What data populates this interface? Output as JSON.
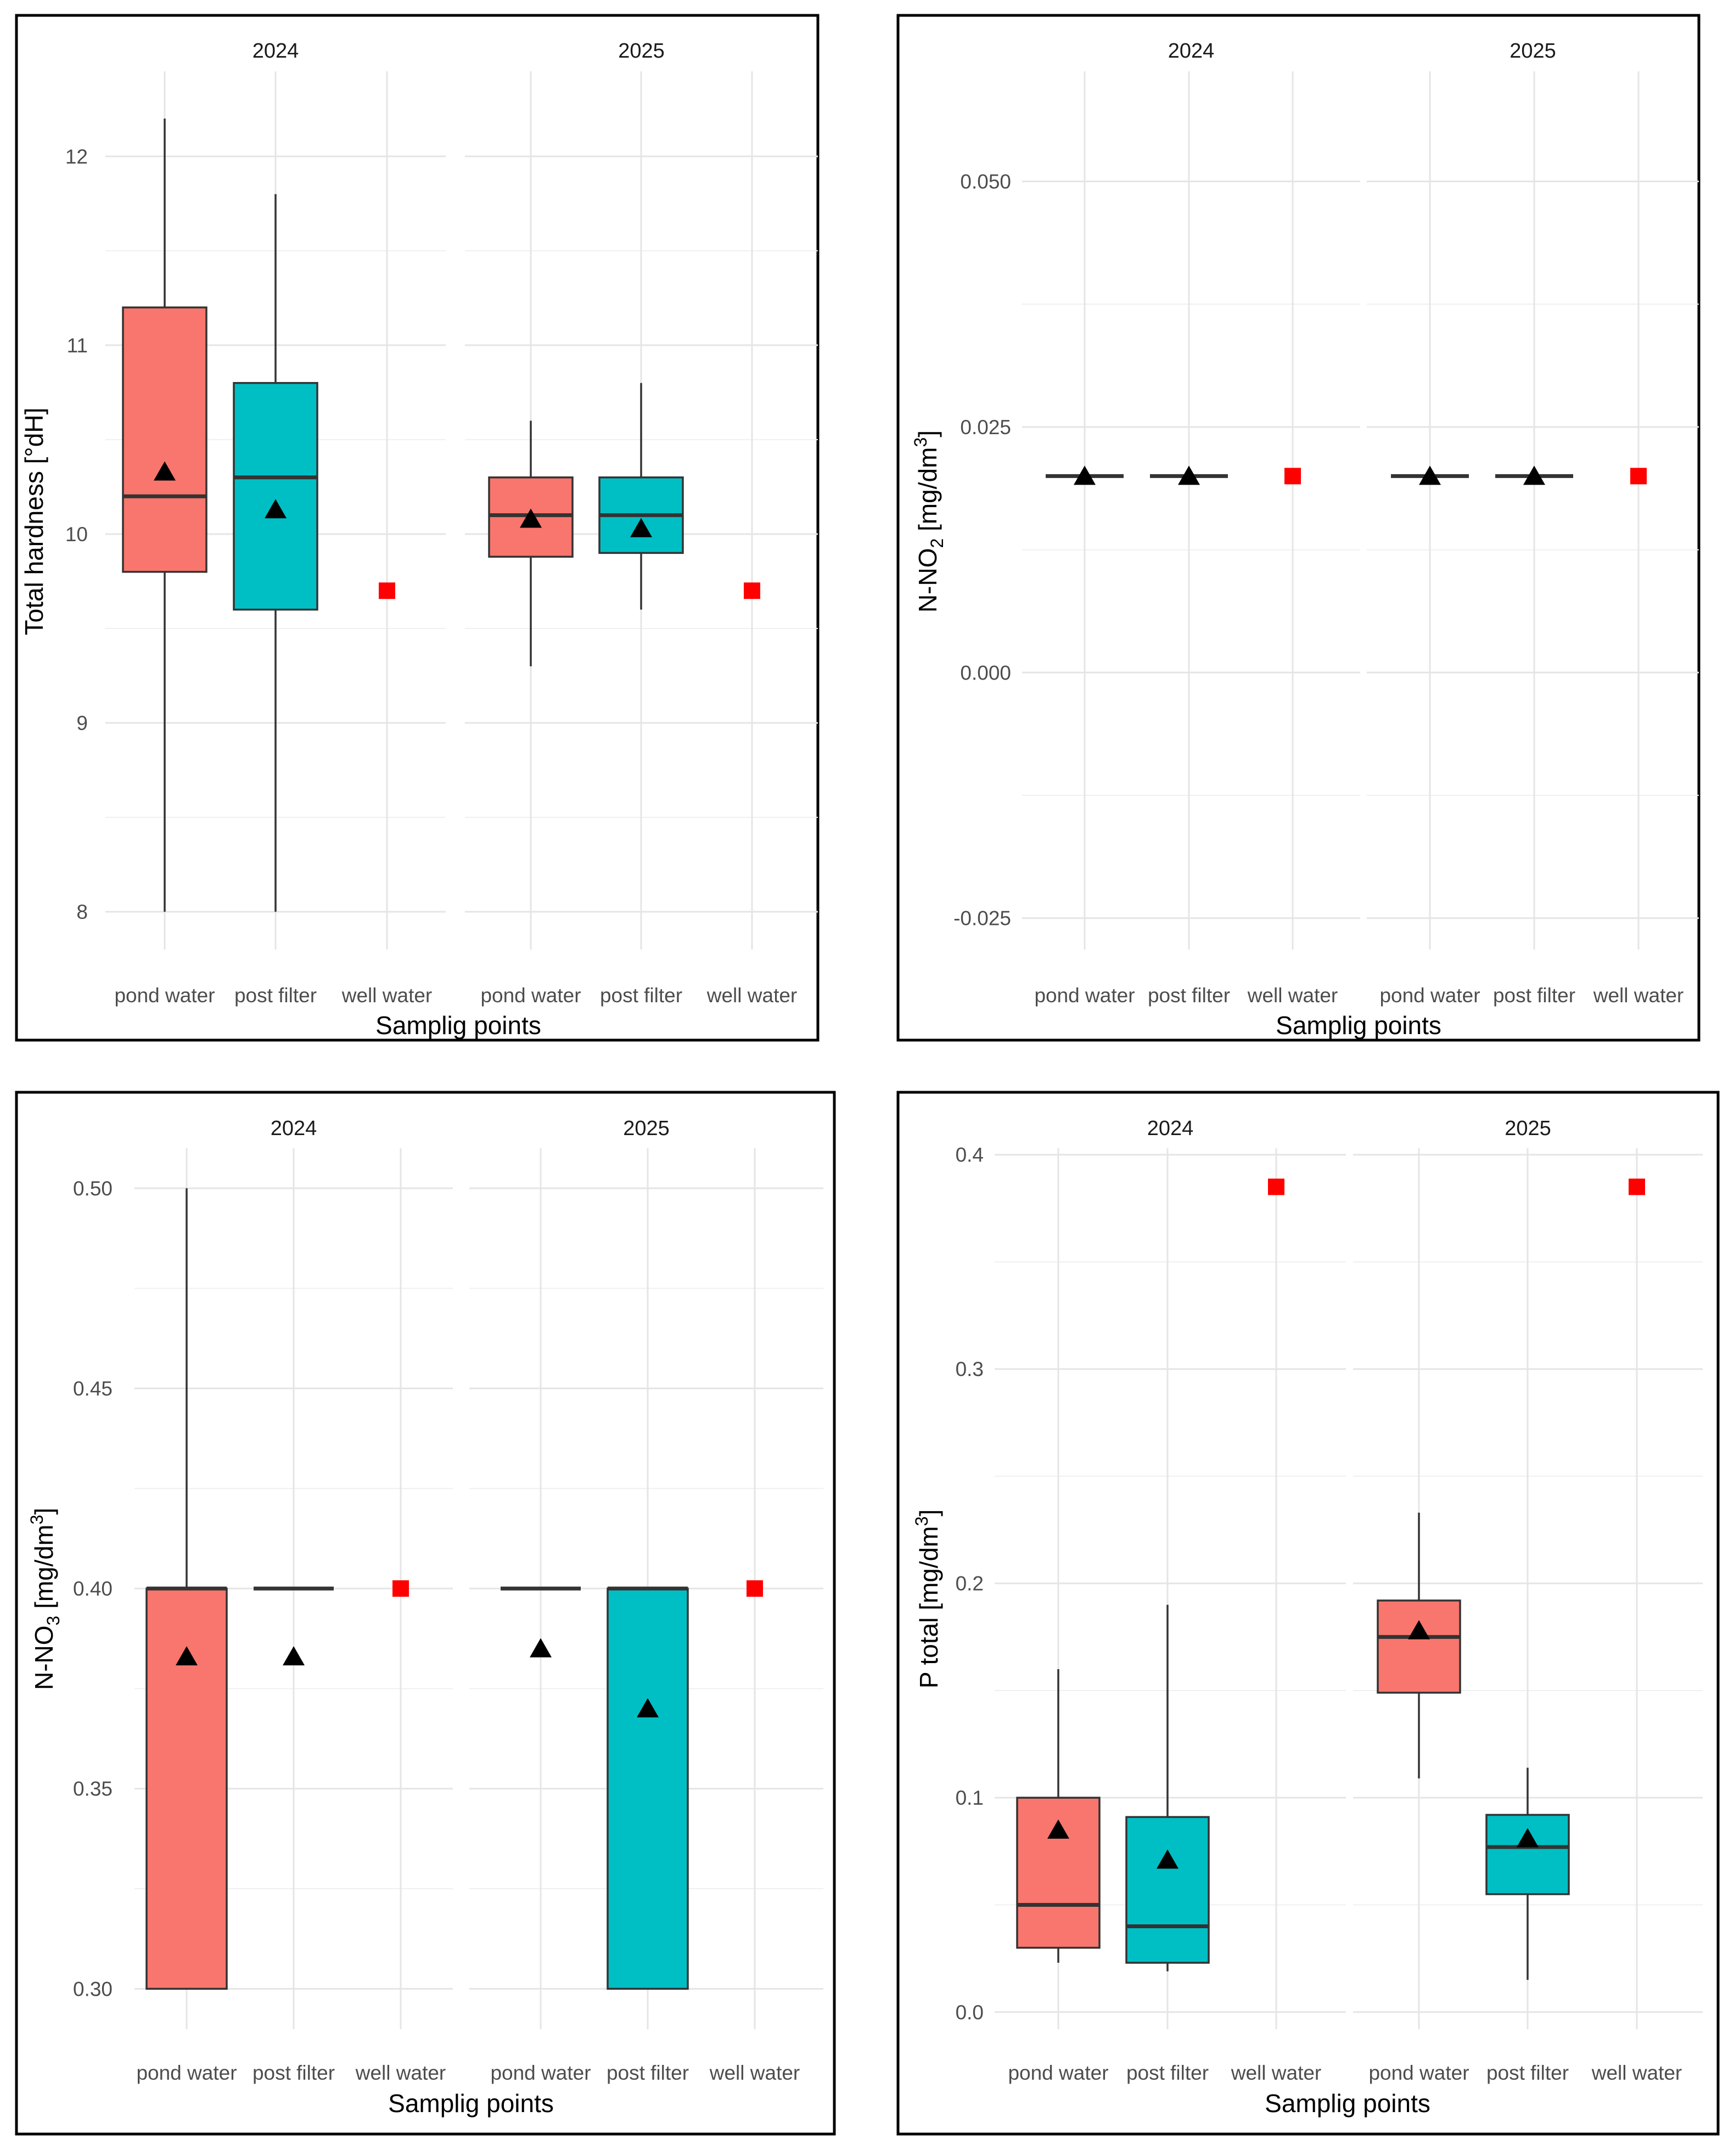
{
  "chart_data": [
    {
      "type": "box",
      "id": "hardness",
      "ylabel": "Total hardness [°dH]",
      "ylabel_sub": "",
      "ylabel_sup": "",
      "ylabel_post": "",
      "xlabel": "Samplig points",
      "ylim": [
        7.8,
        12.45
      ],
      "yticks": [
        8,
        9,
        10,
        11,
        12
      ],
      "yminor": [
        8.5,
        9.5,
        10.5,
        11.5
      ],
      "tick_labels": [
        "8",
        "9",
        "10",
        "11",
        "12"
      ],
      "facets": [
        {
          "label": "2024",
          "categories": [
            "pond water",
            "post filter",
            "well water"
          ],
          "boxes": [
            {
              "type": "box",
              "color": "#F8766D",
              "whisker_low": 8.0,
              "q1": 9.8,
              "median": 10.2,
              "q3": 11.2,
              "whisker_high": 12.2,
              "mean": 10.33
            },
            {
              "type": "box",
              "color": "#00BFC4",
              "whisker_low": 8.0,
              "q1": 9.6,
              "median": 10.3,
              "q3": 10.8,
              "whisker_high": 11.8,
              "mean": 10.13
            },
            {
              "type": "point",
              "value": 9.7
            }
          ]
        },
        {
          "label": "2025",
          "categories": [
            "pond water",
            "post filter",
            "well water"
          ],
          "boxes": [
            {
              "type": "box",
              "color": "#F8766D",
              "whisker_low": 9.3,
              "q1": 9.88,
              "median": 10.1,
              "q3": 10.3,
              "whisker_high": 10.6,
              "mean": 10.08
            },
            {
              "type": "box",
              "color": "#00BFC4",
              "whisker_low": 9.6,
              "q1": 9.9,
              "median": 10.1,
              "q3": 10.3,
              "whisker_high": 10.8,
              "mean": 10.03
            },
            {
              "type": "point",
              "value": 9.7
            }
          ]
        }
      ]
    },
    {
      "type": "box",
      "id": "nitrite",
      "ylabel": "N-NO",
      "ylabel_sub": "2",
      "ylabel_sup": "3",
      "ylabel_post": " [mg/dm",
      "ylabel_end": "]",
      "xlabel": "Samplig points",
      "ylim": [
        -0.0282,
        0.0612
      ],
      "yticks": [
        -0.025,
        0.0,
        0.025,
        0.05
      ],
      "yminor": [
        -0.0125,
        0.0125,
        0.0375
      ],
      "tick_labels": [
        "-0.025",
        "0.000",
        "0.025",
        "0.050"
      ],
      "facets": [
        {
          "label": "2024",
          "categories": [
            "pond water",
            "post filter",
            "well water"
          ],
          "boxes": [
            {
              "type": "box",
              "color": "#F8766D",
              "whisker_low": 0.02,
              "q1": 0.02,
              "median": 0.02,
              "q3": 0.02,
              "whisker_high": 0.02,
              "mean": 0.02
            },
            {
              "type": "box",
              "color": "#00BFC4",
              "whisker_low": 0.02,
              "q1": 0.02,
              "median": 0.02,
              "q3": 0.02,
              "whisker_high": 0.02,
              "mean": 0.02
            },
            {
              "type": "point",
              "value": 0.02
            }
          ]
        },
        {
          "label": "2025",
          "categories": [
            "pond water",
            "post filter",
            "well water"
          ],
          "boxes": [
            {
              "type": "box",
              "color": "#F8766D",
              "whisker_low": 0.02,
              "q1": 0.02,
              "median": 0.02,
              "q3": 0.02,
              "whisker_high": 0.02,
              "mean": 0.02
            },
            {
              "type": "box",
              "color": "#00BFC4",
              "whisker_low": 0.02,
              "q1": 0.02,
              "median": 0.02,
              "q3": 0.02,
              "whisker_high": 0.02,
              "mean": 0.02
            },
            {
              "type": "point",
              "value": 0.02
            }
          ]
        }
      ]
    },
    {
      "type": "box",
      "id": "nitrate",
      "ylabel": "N-NO",
      "ylabel_sub": "3",
      "ylabel_sup": "3",
      "ylabel_post": " [mg/dm",
      "ylabel_end": "]",
      "xlabel": "Samplig points",
      "ylim": [
        0.2899,
        0.51
      ],
      "yticks": [
        0.3,
        0.35,
        0.4,
        0.45,
        0.5
      ],
      "yminor": [
        0.325,
        0.375,
        0.425,
        0.475
      ],
      "tick_labels": [
        "0.30",
        "0.35",
        "0.40",
        "0.45",
        "0.50"
      ],
      "facets": [
        {
          "label": "2024",
          "categories": [
            "pond water",
            "post filter",
            "well water"
          ],
          "boxes": [
            {
              "type": "box",
              "color": "#F8766D",
              "whisker_low": 0.3,
              "q1": 0.3,
              "median": 0.4,
              "q3": 0.4,
              "whisker_high": 0.5,
              "mean": 0.383
            },
            {
              "type": "box",
              "color": "#00BFC4",
              "whisker_low": 0.4,
              "q1": 0.4,
              "median": 0.4,
              "q3": 0.4,
              "whisker_high": 0.4,
              "mean": 0.383
            },
            {
              "type": "point",
              "value": 0.4
            }
          ]
        },
        {
          "label": "2025",
          "categories": [
            "pond water",
            "post filter",
            "well water"
          ],
          "boxes": [
            {
              "type": "box",
              "color": "#F8766D",
              "whisker_low": 0.4,
              "q1": 0.4,
              "median": 0.4,
              "q3": 0.4,
              "whisker_high": 0.4,
              "mean": 0.385
            },
            {
              "type": "box",
              "color": "#00BFC4",
              "whisker_low": 0.3,
              "q1": 0.3,
              "median": 0.4,
              "q3": 0.4,
              "whisker_high": 0.4,
              "mean": 0.37
            },
            {
              "type": "point",
              "value": 0.4
            }
          ]
        }
      ]
    },
    {
      "type": "box",
      "id": "phosphorus",
      "ylabel": "P total [mg/dm",
      "ylabel_sub": "",
      "ylabel_sup": "3",
      "ylabel_post": "",
      "ylabel_end": "]",
      "xlabel": "Samplig points",
      "ylim": [
        -0.008,
        0.403
      ],
      "yticks": [
        0.0,
        0.1,
        0.2,
        0.3,
        0.4
      ],
      "yminor": [
        0.05,
        0.15,
        0.25,
        0.35
      ],
      "tick_labels": [
        "0.0",
        "0.1",
        "0.2",
        "0.3",
        "0.4"
      ],
      "facets": [
        {
          "label": "2024",
          "categories": [
            "pond water",
            "post filter",
            "well water"
          ],
          "boxes": [
            {
              "type": "box",
              "color": "#F8766D",
              "whisker_low": 0.023,
              "q1": 0.03,
              "median": 0.05,
              "q3": 0.1,
              "whisker_high": 0.16,
              "mean": 0.085
            },
            {
              "type": "box",
              "color": "#00BFC4",
              "whisker_low": 0.019,
              "q1": 0.023,
              "median": 0.04,
              "q3": 0.091,
              "whisker_high": 0.19,
              "mean": 0.071
            },
            {
              "type": "point",
              "value": 0.385
            }
          ]
        },
        {
          "label": "2025",
          "categories": [
            "pond water",
            "post filter",
            "well water"
          ],
          "boxes": [
            {
              "type": "box",
              "color": "#F8766D",
              "whisker_low": 0.109,
              "q1": 0.149,
              "median": 0.175,
              "q3": 0.192,
              "whisker_high": 0.233,
              "mean": 0.178
            },
            {
              "type": "box",
              "color": "#00BFC4",
              "whisker_low": 0.015,
              "q1": 0.055,
              "median": 0.077,
              "q3": 0.092,
              "whisker_high": 0.114,
              "mean": 0.081
            },
            {
              "type": "point",
              "value": 0.385
            }
          ]
        }
      ]
    }
  ]
}
